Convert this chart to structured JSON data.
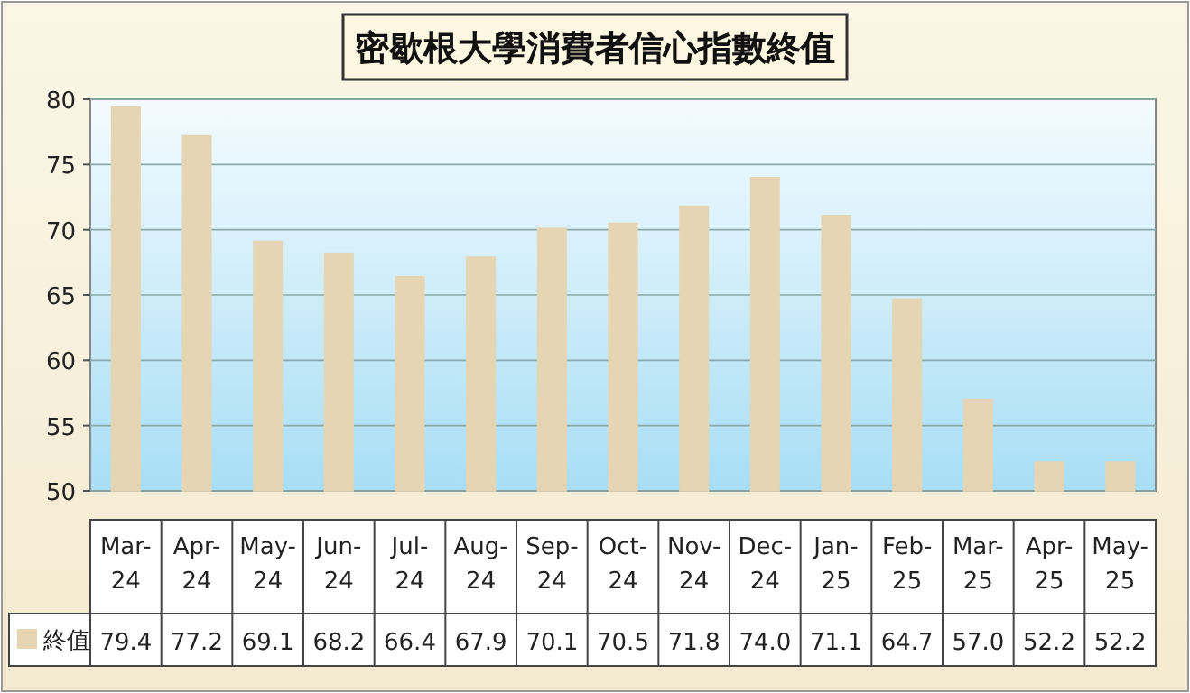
{
  "chart_data": {
    "type": "bar",
    "title": "密歇根大學消費者信心指數終值",
    "categories": [
      "Mar-24",
      "Apr-24",
      "May-24",
      "Jun-24",
      "Jul-24",
      "Aug-24",
      "Sep-24",
      "Oct-24",
      "Nov-24",
      "Dec-24",
      "Jan-25",
      "Feb-25",
      "Mar-25",
      "Apr-25",
      "May-25"
    ],
    "series": [
      {
        "name": "終值",
        "color": "#e6d5b3",
        "values": [
          79.4,
          77.2,
          69.1,
          68.2,
          66.4,
          67.9,
          70.1,
          70.5,
          71.8,
          74.0,
          71.1,
          64.7,
          57.0,
          52.2,
          52.2
        ],
        "value_labels": [
          "79.4",
          "77.2",
          "69.1",
          "68.2",
          "66.4",
          "67.9",
          "70.1",
          "70.5",
          "71.8",
          "74.0",
          "71.1",
          "64.7",
          "57.0",
          "52.2",
          "52.2"
        ]
      }
    ],
    "ylim": [
      50,
      80
    ],
    "yticks": [
      50,
      55,
      60,
      65,
      70,
      75,
      80
    ],
    "grid": "y",
    "legend": "bottom left"
  }
}
